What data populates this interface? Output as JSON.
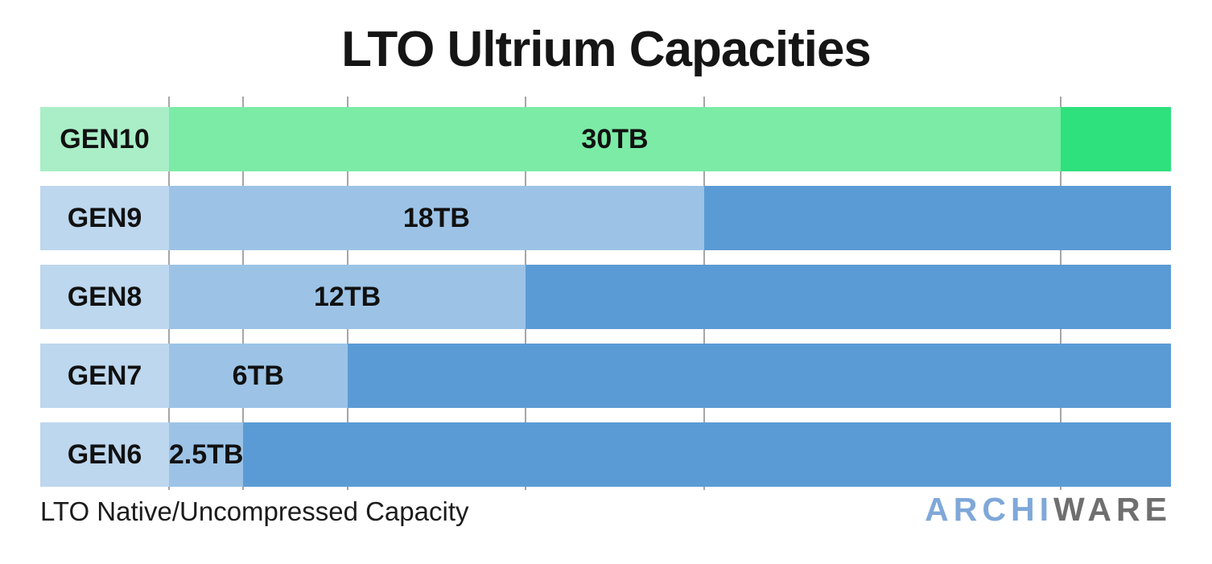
{
  "chart_data": {
    "type": "bar",
    "orientation": "horizontal",
    "title": "LTO Ultrium Capacities",
    "xlabel": "LTO Native/Uncompressed Capacity",
    "categories": [
      "GEN10",
      "GEN9",
      "GEN8",
      "GEN7",
      "GEN6"
    ],
    "values_tb": [
      30,
      18,
      12,
      6,
      2.5
    ],
    "value_labels": [
      "30TB",
      "18TB",
      "12TB",
      "6TB",
      "2.5TB"
    ],
    "x_max_tb": 30,
    "gridline_values_tb": [
      0,
      2.5,
      6,
      12,
      18,
      30
    ],
    "bars_fill_to_right_edge": true,
    "grid": true,
    "legend": false,
    "row_palettes": [
      "green",
      "blue",
      "blue",
      "blue",
      "blue"
    ],
    "palettes": {
      "green": {
        "label_bg": "#a9eec7",
        "value_bg": "#7beba6",
        "rest_bg": "#2ee17c"
      },
      "blue": {
        "label_bg": "#bdd7ee",
        "value_bg": "#9cc3e6",
        "rest_bg": "#5b9bd5"
      }
    },
    "colors": {
      "gridline": "#a6a6a6",
      "bar_text": "#111111",
      "title_text": "#151515",
      "caption_text": "#1c1c1c"
    }
  },
  "logo": {
    "text_primary": "ARCHI",
    "text_secondary": "WARE",
    "color_primary": "#7fa8d9",
    "color_secondary": "#706f6f"
  }
}
